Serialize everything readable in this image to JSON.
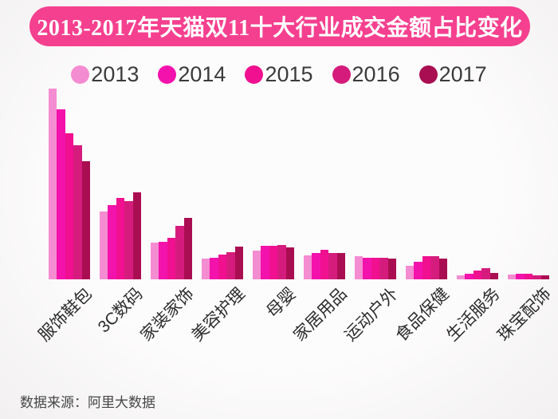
{
  "title": {
    "text": "2013-2017年天猫双11十大行业成交金额占比变化"
  },
  "colors": {
    "banner_bg": "#F5408F",
    "banner_fg": "#FFFFFF",
    "legend_text": "#3B3B3B",
    "axis_label_text": "#2D2D2D",
    "source_text": "#474747"
  },
  "chart_data": {
    "type": "bar",
    "title": "2013-2017年天猫双11十大行业成交金额占比变化",
    "categories": [
      "服饰鞋包",
      "3C数码",
      "家装家饰",
      "美容护理",
      "母婴",
      "家居用品",
      "运动户外",
      "食品保健",
      "生活服务",
      "珠宝配饰"
    ],
    "series": [
      {
        "name": "2013",
        "color": "#F48CD1",
        "values": [
          239,
          85,
          46,
          26,
          36,
          30,
          29,
          17,
          5,
          6
        ]
      },
      {
        "name": "2014",
        "color": "#F312AB",
        "values": [
          213,
          93,
          47,
          27,
          42,
          33,
          27,
          22,
          7,
          7
        ]
      },
      {
        "name": "2015",
        "color": "#F01090",
        "values": [
          183,
          102,
          52,
          31,
          42,
          37,
          27,
          29,
          11,
          7
        ]
      },
      {
        "name": "2016",
        "color": "#D51C7D",
        "values": [
          168,
          98,
          67,
          34,
          43,
          33,
          27,
          29,
          14,
          5
        ]
      },
      {
        "name": "2017",
        "color": "#AA0E52",
        "values": [
          148,
          109,
          77,
          41,
          40,
          33,
          26,
          26,
          8,
          5
        ]
      }
    ],
    "value_axis": "none shown — no ticks, gridlines or data labels; values are bar heights in screen pixels",
    "ylim": [
      0,
      250
    ],
    "grid": false,
    "legend_position": "top",
    "xlabel": "",
    "ylabel": ""
  },
  "source": {
    "text": "数据来源：阿里大数据"
  }
}
